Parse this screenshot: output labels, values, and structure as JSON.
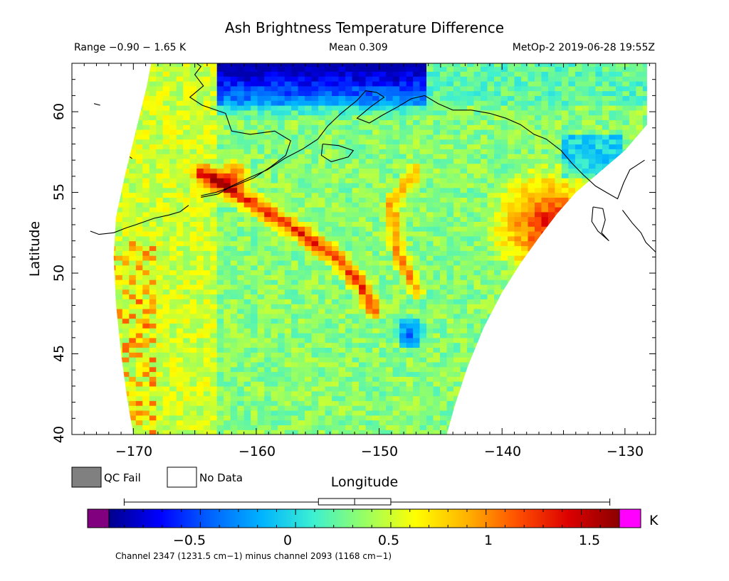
{
  "header": {
    "title": "Ash Brightness Temperature Difference",
    "range": "Range −0.90 − 1.65 K",
    "mean": "Mean 0.309",
    "satellite": "MetOp-2 2019-06-28 19:55Z"
  },
  "legend": {
    "qc_fail_label": "QC Fail",
    "no_data_label": "No Data",
    "qc_fail_color": "#808080",
    "no_data_color": "#ffffff"
  },
  "colorbar": {
    "unit": "K",
    "ticks": [
      "−0.5",
      "0",
      "0.5",
      "1",
      "1.5"
    ],
    "caption": "Channel 2347 (1231.5 cm−1) minus channel 2093 (1168 cm−1)",
    "under_color": "#800080",
    "over_color": "#ff00ff",
    "colors": [
      "#00008c",
      "#0000ff",
      "#0064ff",
      "#00b4ff",
      "#3cf0d2",
      "#96ff64",
      "#ffff00",
      "#ffb400",
      "#ff5000",
      "#dc0000",
      "#8c0000"
    ]
  },
  "chart_data": {
    "type": "heatmap",
    "title": "Ash Brightness Temperature Difference",
    "xlabel": "Longitude",
    "ylabel": "Latitude",
    "xlim": [
      -175,
      -127.5
    ],
    "ylim": [
      40,
      63
    ],
    "x_ticks": [
      "−170",
      "−160",
      "−150",
      "−140",
      "−130"
    ],
    "y_ticks": [
      "40",
      "45",
      "50",
      "55",
      "60"
    ],
    "value_range": [
      -0.9,
      1.65
    ],
    "mean": 0.309,
    "units": "K",
    "colorbar_range": [
      -0.98,
      1.7
    ],
    "box_summary": {
      "whisker_low": -0.9,
      "q1": 0.12,
      "median": 0.31,
      "q3": 0.5,
      "whisker_high": 1.65
    },
    "features": [
      {
        "name": "ash plume arc",
        "value": 1.4,
        "points": [
          [
            -164.5,
            56.2
          ],
          [
            -160,
            54.2
          ],
          [
            -156,
            52.3
          ],
          [
            -153.5,
            51.0
          ],
          [
            -151.5,
            49.3
          ],
          [
            -150.5,
            47.8
          ]
        ]
      },
      {
        "name": "secondary plume",
        "value": 1.1,
        "points": [
          [
            -147,
            56.2
          ],
          [
            -149,
            54.3
          ],
          [
            -148.5,
            51.3
          ],
          [
            -147,
            49.0
          ]
        ]
      },
      {
        "name": "northern cold region",
        "value": -0.55,
        "points": [
          [
            -162,
            62.5
          ],
          [
            -148,
            62.5
          ],
          [
            -150,
            59.5
          ],
          [
            -158,
            59.5
          ]
        ]
      },
      {
        "name": "eastern warm region",
        "value": 1.3,
        "points": [
          [
            -137,
            55.5
          ],
          [
            -133,
            54.5
          ],
          [
            -136,
            50.5
          ],
          [
            -140,
            52
          ]
        ]
      },
      {
        "name": "cold spot",
        "value": -0.7,
        "points": [
          [
            -147.5,
            46.3
          ]
        ]
      }
    ]
  }
}
